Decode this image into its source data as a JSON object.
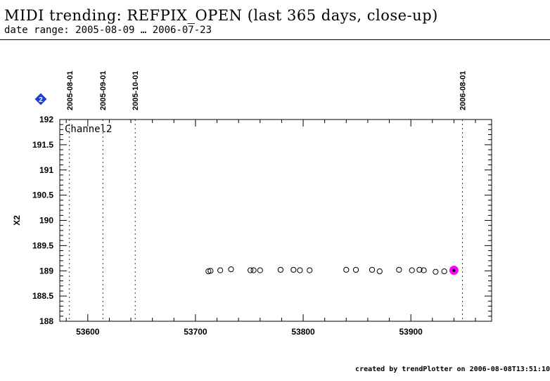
{
  "title": "MIDI trending: REFPIX_OPEN (last 365 days, close-up)",
  "subtitle": "date range: 2005-08-09 … 2006-07-23",
  "footer": "created by trendPlotter on 2006-08-08T13:51:10",
  "marker_badge": "2",
  "chart_data": {
    "type": "scatter",
    "panel_label": "Channel2",
    "xlabel": "",
    "ylabel": "X2",
    "xlim": [
      53574,
      53975
    ],
    "ylim": [
      188,
      192
    ],
    "xticks": [
      53600,
      53700,
      53800,
      53900
    ],
    "yticks": [
      188,
      188.5,
      189,
      189.5,
      190,
      190.5,
      191,
      191.5,
      192
    ],
    "date_markers": [
      {
        "label": "2005-08-01",
        "mjd": 53583
      },
      {
        "label": "2005-09-01",
        "mjd": 53614
      },
      {
        "label": "2005-10-01",
        "mjd": 53644
      },
      {
        "label": "2006-08-01",
        "mjd": 53948
      }
    ],
    "points": [
      {
        "x": 53712,
        "y": 188.99
      },
      {
        "x": 53714,
        "y": 189.0
      },
      {
        "x": 53723,
        "y": 189.01
      },
      {
        "x": 53733,
        "y": 189.03
      },
      {
        "x": 53751,
        "y": 189.01
      },
      {
        "x": 53754,
        "y": 189.01
      },
      {
        "x": 53760,
        "y": 189.01
      },
      {
        "x": 53779,
        "y": 189.02
      },
      {
        "x": 53791,
        "y": 189.02
      },
      {
        "x": 53797,
        "y": 189.01
      },
      {
        "x": 53806,
        "y": 189.01
      },
      {
        "x": 53840,
        "y": 189.02
      },
      {
        "x": 53849,
        "y": 189.02
      },
      {
        "x": 53864,
        "y": 189.02
      },
      {
        "x": 53871,
        "y": 188.99
      },
      {
        "x": 53889,
        "y": 189.02
      },
      {
        "x": 53901,
        "y": 189.01
      },
      {
        "x": 53908,
        "y": 189.02
      },
      {
        "x": 53912,
        "y": 189.01
      },
      {
        "x": 53923,
        "y": 188.98
      },
      {
        "x": 53931,
        "y": 188.99
      }
    ],
    "highlight_point": {
      "x": 53940,
      "y": 189.01
    },
    "colors": {
      "highlight": "#ff00ff",
      "marker_badge": "#1a3fd6",
      "axis": "#000000"
    },
    "grid": false
  }
}
